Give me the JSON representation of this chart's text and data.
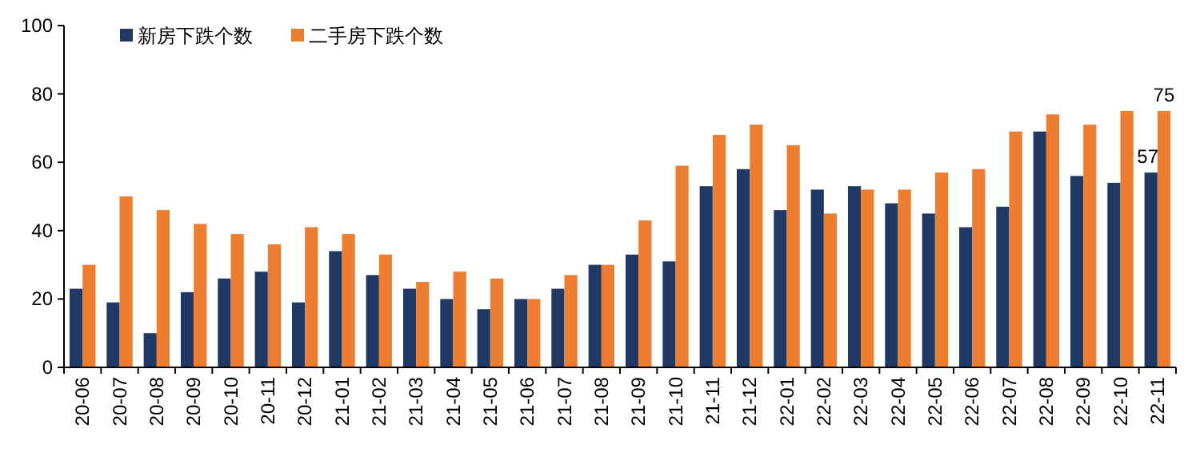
{
  "chart_data": {
    "type": "bar",
    "categories": [
      "20-06",
      "20-07",
      "20-08",
      "20-09",
      "20-10",
      "20-11",
      "20-12",
      "21-01",
      "21-02",
      "21-03",
      "21-04",
      "21-05",
      "21-06",
      "21-07",
      "21-08",
      "21-09",
      "21-10",
      "21-11",
      "21-12",
      "22-01",
      "22-02",
      "22-03",
      "22-04",
      "22-05",
      "22-06",
      "22-07",
      "22-08",
      "22-09",
      "22-10",
      "22-11"
    ],
    "series": [
      {
        "name": "新房下跌个数",
        "color": "#1f3864",
        "values": [
          23,
          19,
          10,
          22,
          26,
          28,
          19,
          34,
          27,
          23,
          20,
          17,
          20,
          23,
          30,
          33,
          31,
          53,
          58,
          46,
          52,
          53,
          48,
          45,
          41,
          47,
          69,
          56,
          54,
          57
        ],
        "value_labels": [
          null,
          null,
          null,
          null,
          null,
          null,
          null,
          null,
          null,
          null,
          null,
          null,
          null,
          null,
          null,
          null,
          null,
          null,
          null,
          null,
          null,
          null,
          null,
          null,
          null,
          null,
          null,
          null,
          null,
          "57"
        ]
      },
      {
        "name": "二手房下跌个数",
        "color": "#ed7d31",
        "values": [
          30,
          50,
          46,
          42,
          39,
          36,
          41,
          39,
          33,
          25,
          28,
          26,
          20,
          27,
          30,
          43,
          59,
          68,
          71,
          65,
          45,
          52,
          52,
          57,
          58,
          69,
          74,
          71,
          75,
          75
        ],
        "value_labels": [
          null,
          null,
          null,
          null,
          null,
          null,
          null,
          null,
          null,
          null,
          null,
          null,
          null,
          null,
          null,
          null,
          null,
          null,
          null,
          null,
          null,
          null,
          null,
          null,
          null,
          null,
          null,
          null,
          null,
          "75"
        ]
      }
    ],
    "ylim": [
      0,
      100
    ],
    "yticks": [
      0,
      20,
      40,
      60,
      80,
      100
    ],
    "grid": false,
    "legend": "top left"
  }
}
